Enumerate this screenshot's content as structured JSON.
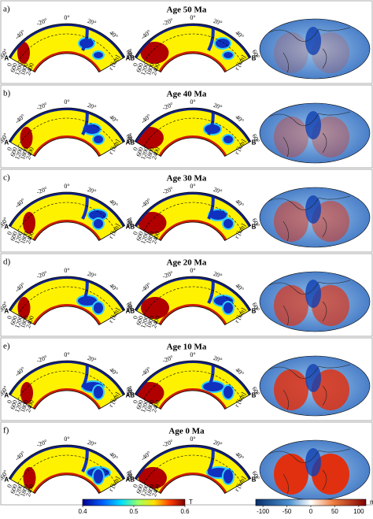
{
  "panels": [
    {
      "label": "a)",
      "title": "Age 50 Ma"
    },
    {
      "label": "b)",
      "title": "Age 40 Ma"
    },
    {
      "label": "c)",
      "title": "Age 30 Ma"
    },
    {
      "label": "d)",
      "title": "Age 20 Ma"
    },
    {
      "label": "e)",
      "title": "Age 10 Ma"
    },
    {
      "label": "f)",
      "title": "Age 0 Ma"
    }
  ],
  "sections": {
    "angle_ticks": [
      "-60°",
      "-40°",
      "-20°",
      "0°",
      "20°",
      "40°",
      "60°"
    ],
    "depth_ticks": [
      "0",
      "600",
      "1200",
      "1800",
      "2400"
    ],
    "radius_label": "r [km]",
    "left": {
      "start": "A",
      "end": "A'"
    },
    "right": {
      "start": "B",
      "end": "B'"
    }
  },
  "colorbars": [
    {
      "range": [
        0.4,
        0.6
      ],
      "ticks": [
        0.4,
        0.5,
        0.6
      ],
      "unit": "T"
    },
    {
      "range": [
        -115,
        115
      ],
      "ticks": [
        -100,
        -50,
        0,
        50,
        100
      ],
      "unit": "m"
    }
  ]
}
